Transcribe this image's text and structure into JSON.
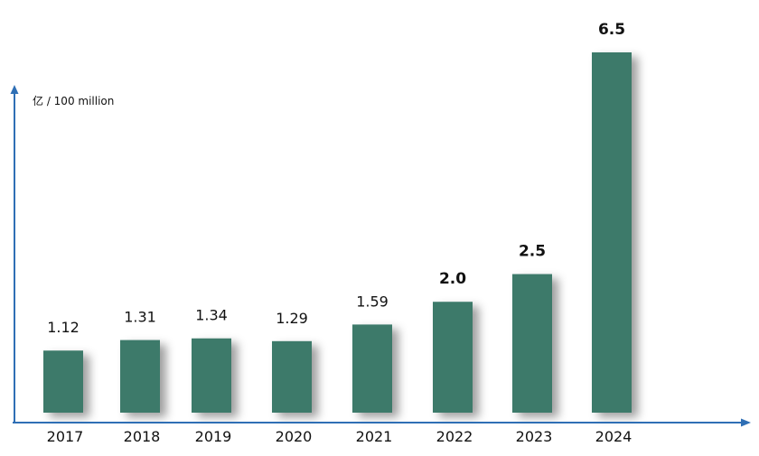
{
  "chart_data": {
    "type": "bar",
    "ylabel": "亿 / 100 million",
    "categories": [
      "2017",
      "2018",
      "2019",
      "2020",
      "2021",
      "2022",
      "2023",
      "2024"
    ],
    "values": [
      1.12,
      1.31,
      1.34,
      1.29,
      1.59,
      2.0,
      2.5,
      6.5
    ],
    "value_labels": [
      "1.12",
      "1.31",
      "1.34",
      "1.29",
      "1.59",
      "2.0",
      "2.5",
      "6.5"
    ],
    "ylim": [
      0,
      6.5
    ],
    "grid": false,
    "colors": {
      "bar": "#3e7a6b",
      "axis": "#2f6fb5"
    }
  }
}
